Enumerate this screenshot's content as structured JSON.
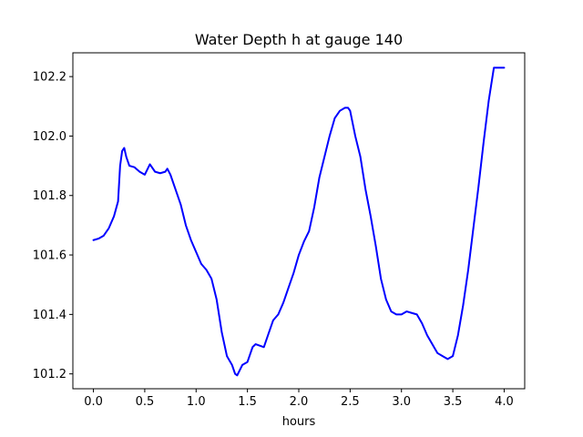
{
  "chart_data": {
    "type": "line",
    "title": "Water Depth h at gauge 140",
    "xlabel": "hours",
    "ylabel": "",
    "xlim": [
      -0.2,
      4.2
    ],
    "ylim": [
      101.15,
      102.28
    ],
    "xticks": [
      0.0,
      0.5,
      1.0,
      1.5,
      2.0,
      2.5,
      3.0,
      3.5,
      4.0
    ],
    "xtick_labels": [
      "0.0",
      "0.5",
      "1.0",
      "1.5",
      "2.0",
      "2.5",
      "3.0",
      "3.5",
      "4.0"
    ],
    "yticks": [
      101.2,
      101.4,
      101.6,
      101.8,
      102.0,
      102.2
    ],
    "ytick_labels": [
      "101.2",
      "101.4",
      "101.6",
      "101.8",
      "102.0",
      "102.2"
    ],
    "grid": false,
    "line_color": "#0000ff",
    "series": [
      {
        "x": [
          0.0,
          0.05,
          0.1,
          0.15,
          0.2,
          0.24,
          0.26,
          0.28,
          0.3,
          0.32,
          0.35,
          0.4,
          0.45,
          0.5,
          0.55,
          0.6,
          0.65,
          0.7,
          0.72,
          0.75,
          0.8,
          0.85,
          0.9,
          0.95,
          1.0,
          1.05,
          1.1,
          1.15,
          1.2,
          1.25,
          1.3,
          1.35,
          1.38,
          1.4,
          1.45,
          1.5,
          1.55,
          1.58,
          1.62,
          1.66,
          1.7,
          1.75,
          1.8,
          1.85,
          1.9,
          1.95,
          2.0,
          2.05,
          2.1,
          2.15,
          2.2,
          2.25,
          2.3,
          2.35,
          2.4,
          2.45,
          2.48,
          2.5,
          2.55,
          2.6,
          2.65,
          2.7,
          2.75,
          2.8,
          2.85,
          2.9,
          2.95,
          3.0,
          3.05,
          3.1,
          3.15,
          3.2,
          3.25,
          3.3,
          3.35,
          3.4,
          3.45,
          3.5,
          3.55,
          3.6,
          3.65,
          3.7,
          3.75,
          3.8,
          3.85,
          3.9,
          3.95,
          4.0
        ],
        "values": [
          101.65,
          101.655,
          101.665,
          101.69,
          101.73,
          101.78,
          101.9,
          101.95,
          101.96,
          101.93,
          101.9,
          101.895,
          101.88,
          101.87,
          101.905,
          101.88,
          101.875,
          101.88,
          101.89,
          101.87,
          101.82,
          101.77,
          101.7,
          101.65,
          101.61,
          101.57,
          101.55,
          101.52,
          101.45,
          101.34,
          101.26,
          101.23,
          101.2,
          101.195,
          101.23,
          101.24,
          101.29,
          101.3,
          101.295,
          101.29,
          101.33,
          101.38,
          101.4,
          101.44,
          101.49,
          101.54,
          101.6,
          101.645,
          101.68,
          101.76,
          101.86,
          101.93,
          102.0,
          102.06,
          102.085,
          102.095,
          102.095,
          102.085,
          102.0,
          101.93,
          101.82,
          101.73,
          101.63,
          101.52,
          101.45,
          101.41,
          101.4,
          101.4,
          101.41,
          101.405,
          101.4,
          101.37,
          101.33,
          101.3,
          101.27,
          101.26,
          101.25,
          101.26,
          101.33,
          101.43,
          101.55,
          101.69,
          101.83,
          101.98,
          102.12,
          102.23,
          102.23,
          102.23
        ]
      }
    ]
  }
}
